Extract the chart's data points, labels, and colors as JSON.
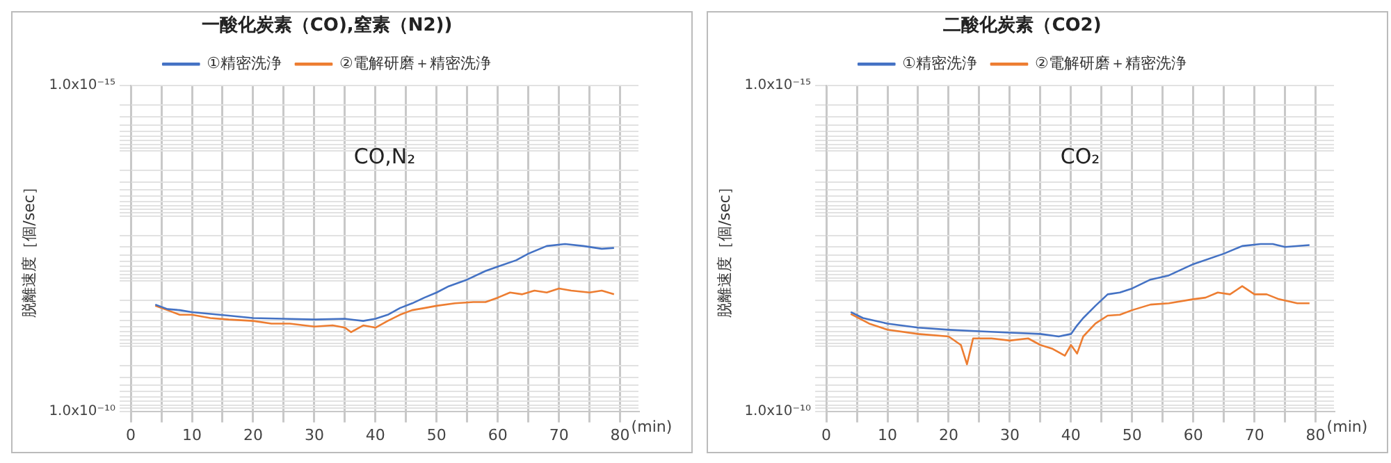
{
  "chart_data": [
    {
      "type": "line",
      "title": "一酸化炭素（CO),窒素（N2))",
      "xlabel": "(min)",
      "ylabel": "脱離速度［個/sec］",
      "annotations": [
        "CO,N₂"
      ],
      "log": true,
      "grid": true,
      "legend": "top",
      "xlim": [
        0,
        83
      ],
      "ylim": [
        1e-10,
        1e-15
      ],
      "xticks": [
        0,
        {
          "value": 5,
          "label": null
        },
        10,
        {
          "value": 15,
          "label": null
        },
        20,
        {
          "value": 25,
          "label": null
        },
        30,
        {
          "value": 35,
          "label": null
        },
        40,
        {
          "value": 45,
          "label": null
        },
        50,
        {
          "value": 55,
          "label": null
        },
        60,
        {
          "value": 65,
          "label": null
        },
        70,
        {
          "value": 75,
          "label": null
        },
        80
      ],
      "yticks": [
        {
          "value": 1e-15,
          "label": "1.0x10⁻¹⁵"
        },
        {
          "value": 2e-15,
          "label": null
        },
        {
          "value": 3e-15,
          "label": null
        },
        {
          "value": 4e-15,
          "label": null
        },
        {
          "value": 5e-15,
          "label": null
        },
        {
          "value": 6e-15,
          "label": null
        },
        {
          "value": 7e-15,
          "label": null
        },
        {
          "value": 8e-15,
          "label": null
        },
        {
          "value": 9e-15,
          "label": null
        },
        {
          "value": 1e-14,
          "label": null
        },
        {
          "value": 2e-14,
          "label": null
        },
        {
          "value": 3e-14,
          "label": null
        },
        {
          "value": 4e-14,
          "label": null
        },
        {
          "value": 5e-14,
          "label": null
        },
        {
          "value": 6e-14,
          "label": null
        },
        {
          "value": 7e-14,
          "label": null
        },
        {
          "value": 8e-14,
          "label": null
        },
        {
          "value": 9e-14,
          "label": null
        },
        {
          "value": 1e-13,
          "label": null
        },
        {
          "value": 2e-13,
          "label": null
        },
        {
          "value": 3e-13,
          "label": null
        },
        {
          "value": 4e-13,
          "label": null
        },
        {
          "value": 5e-13,
          "label": null
        },
        {
          "value": 6e-13,
          "label": null
        },
        {
          "value": 7e-13,
          "label": null
        },
        {
          "value": 8e-13,
          "label": null
        },
        {
          "value": 9e-13,
          "label": null
        },
        {
          "value": 1e-12,
          "label": null
        },
        {
          "value": 2e-12,
          "label": null
        },
        {
          "value": 3e-12,
          "label": null
        },
        {
          "value": 4e-12,
          "label": null
        },
        {
          "value": 5e-12,
          "label": null
        },
        {
          "value": 6e-12,
          "label": null
        },
        {
          "value": 7e-12,
          "label": null
        },
        {
          "value": 8e-12,
          "label": null
        },
        {
          "value": 9e-12,
          "label": null
        },
        {
          "value": 1e-11,
          "label": null
        },
        {
          "value": 2e-11,
          "label": null
        },
        {
          "value": 3e-11,
          "label": null
        },
        {
          "value": 4e-11,
          "label": null
        },
        {
          "value": 5e-11,
          "label": null
        },
        {
          "value": 6e-11,
          "label": null
        },
        {
          "value": 7e-11,
          "label": null
        },
        {
          "value": 8e-11,
          "label": null
        },
        {
          "value": 9e-11,
          "label": null
        },
        {
          "value": 1e-10,
          "label": "1.0x10⁻¹⁰"
        }
      ],
      "series": [
        {
          "name": "①精密洗浄",
          "color": "#4472c4",
          "x": [
            4,
            6,
            8,
            10,
            13,
            16,
            20,
            25,
            30,
            35,
            38,
            40,
            42,
            44,
            46,
            48,
            50,
            52,
            55,
            58,
            60,
            63,
            65,
            68,
            71,
            74,
            77,
            79
          ],
          "values": [
            2.3e-12,
            2.7e-12,
            2.8e-12,
            3e-12,
            3.2e-12,
            3.4e-12,
            3.7e-12,
            3.8e-12,
            3.9e-12,
            3.8e-12,
            4.1e-12,
            3.8e-12,
            3.3e-12,
            2.6e-12,
            2.2e-12,
            1.8e-12,
            1.5e-12,
            1.2e-12,
            9.5e-13,
            7e-13,
            6e-13,
            4.8e-13,
            3.8e-13,
            2.9e-13,
            2.7e-13,
            2.9e-13,
            3.2e-13,
            3.1e-13
          ]
        },
        {
          "name": "②電解研磨＋精密洗浄",
          "color": "#ed7d31",
          "x": [
            4,
            6,
            8,
            10,
            13,
            16,
            20,
            23,
            26,
            30,
            33,
            35,
            36,
            38,
            40,
            42,
            44,
            46,
            48,
            50,
            53,
            56,
            58,
            60,
            62,
            64,
            66,
            68,
            70,
            72,
            75,
            77,
            79
          ],
          "values": [
            2.4e-12,
            2.8e-12,
            3.3e-12,
            3.3e-12,
            3.7e-12,
            3.9e-12,
            4.1e-12,
            4.5e-12,
            4.5e-12,
            5e-12,
            4.8e-12,
            5.2e-12,
            6.1e-12,
            4.8e-12,
            5.2e-12,
            4.1e-12,
            3.3e-12,
            2.8e-12,
            2.6e-12,
            2.4e-12,
            2.2e-12,
            2.1e-12,
            2.1e-12,
            1.8e-12,
            1.5e-12,
            1.6e-12,
            1.4e-12,
            1.5e-12,
            1.3e-12,
            1.4e-12,
            1.5e-12,
            1.4e-12,
            1.6e-12
          ]
        }
      ]
    },
    {
      "type": "line",
      "title": "二酸化炭素（CO2)",
      "xlabel": "(min)",
      "ylabel": "脱離速度［個/sec］",
      "annotations": [
        "CO₂"
      ],
      "log": true,
      "grid": true,
      "legend": "top",
      "xlim": [
        0,
        83
      ],
      "ylim": [
        1e-10,
        1e-15
      ],
      "xticks": [
        0,
        {
          "value": 5,
          "label": null
        },
        10,
        {
          "value": 15,
          "label": null
        },
        20,
        {
          "value": 25,
          "label": null
        },
        30,
        {
          "value": 35,
          "label": null
        },
        40,
        {
          "value": 45,
          "label": null
        },
        50,
        {
          "value": 55,
          "label": null
        },
        60,
        {
          "value": 65,
          "label": null
        },
        70,
        {
          "value": 75,
          "label": null
        },
        80
      ],
      "yticks": [
        {
          "value": 1e-15,
          "label": "1.0x10⁻¹⁵"
        },
        {
          "value": 2e-15,
          "label": null
        },
        {
          "value": 3e-15,
          "label": null
        },
        {
          "value": 4e-15,
          "label": null
        },
        {
          "value": 5e-15,
          "label": null
        },
        {
          "value": 6e-15,
          "label": null
        },
        {
          "value": 7e-15,
          "label": null
        },
        {
          "value": 8e-15,
          "label": null
        },
        {
          "value": 9e-15,
          "label": null
        },
        {
          "value": 1e-14,
          "label": null
        },
        {
          "value": 2e-14,
          "label": null
        },
        {
          "value": 3e-14,
          "label": null
        },
        {
          "value": 4e-14,
          "label": null
        },
        {
          "value": 5e-14,
          "label": null
        },
        {
          "value": 6e-14,
          "label": null
        },
        {
          "value": 7e-14,
          "label": null
        },
        {
          "value": 8e-14,
          "label": null
        },
        {
          "value": 9e-14,
          "label": null
        },
        {
          "value": 1e-13,
          "label": null
        },
        {
          "value": 2e-13,
          "label": null
        },
        {
          "value": 3e-13,
          "label": null
        },
        {
          "value": 4e-13,
          "label": null
        },
        {
          "value": 5e-13,
          "label": null
        },
        {
          "value": 6e-13,
          "label": null
        },
        {
          "value": 7e-13,
          "label": null
        },
        {
          "value": 8e-13,
          "label": null
        },
        {
          "value": 9e-13,
          "label": null
        },
        {
          "value": 1e-12,
          "label": null
        },
        {
          "value": 2e-12,
          "label": null
        },
        {
          "value": 3e-12,
          "label": null
        },
        {
          "value": 4e-12,
          "label": null
        },
        {
          "value": 5e-12,
          "label": null
        },
        {
          "value": 6e-12,
          "label": null
        },
        {
          "value": 7e-12,
          "label": null
        },
        {
          "value": 8e-12,
          "label": null
        },
        {
          "value": 9e-12,
          "label": null
        },
        {
          "value": 1e-11,
          "label": null
        },
        {
          "value": 2e-11,
          "label": null
        },
        {
          "value": 3e-11,
          "label": null
        },
        {
          "value": 4e-11,
          "label": null
        },
        {
          "value": 5e-11,
          "label": null
        },
        {
          "value": 6e-11,
          "label": null
        },
        {
          "value": 7e-11,
          "label": null
        },
        {
          "value": 8e-11,
          "label": null
        },
        {
          "value": 9e-11,
          "label": null
        },
        {
          "value": 1e-10,
          "label": "1.0x10⁻¹⁰"
        }
      ],
      "series": [
        {
          "name": "①精密洗浄",
          "color": "#4472c4",
          "x": [
            4,
            6,
            10,
            15,
            20,
            25,
            30,
            35,
            38,
            40,
            41,
            42,
            44,
            46,
            48,
            50,
            53,
            56,
            60,
            65,
            68,
            71,
            73,
            75,
            79
          ],
          "values": [
            3e-12,
            3.7e-12,
            4.5e-12,
            5.2e-12,
            5.6e-12,
            5.9e-12,
            6.2e-12,
            6.5e-12,
            7.1e-12,
            6.5e-12,
            4.8e-12,
            3.7e-12,
            2.4e-12,
            1.6e-12,
            1.5e-12,
            1.3e-12,
            9.5e-13,
            8.2e-13,
            5.5e-13,
            3.8e-13,
            2.9e-13,
            2.7e-13,
            2.7e-13,
            3e-13,
            2.8e-13
          ]
        },
        {
          "name": "②電解研磨＋精密洗浄",
          "color": "#ed7d31",
          "x": [
            4,
            7,
            10,
            15,
            20,
            22,
            23,
            24,
            27,
            30,
            33,
            35,
            37,
            39,
            40,
            41,
            42,
            44,
            46,
            48,
            50,
            53,
            56,
            60,
            62,
            64,
            66,
            68,
            70,
            72,
            74,
            77,
            79
          ],
          "values": [
            3.2e-12,
            4.5e-12,
            5.6e-12,
            6.5e-12,
            7.1e-12,
            9.6e-12,
            1.9e-11,
            7.6e-12,
            7.6e-12,
            8.2e-12,
            7.6e-12,
            9.6e-12,
            1.1e-11,
            1.4e-11,
            9.6e-12,
            1.3e-11,
            7.1e-12,
            4.5e-12,
            3.4e-12,
            3.3e-12,
            2.8e-12,
            2.3e-12,
            2.2e-12,
            1.9e-12,
            1.8e-12,
            1.5e-12,
            1.6e-12,
            1.2e-12,
            1.6e-12,
            1.6e-12,
            1.9e-12,
            2.2e-12,
            2.2e-12
          ]
        }
      ]
    }
  ]
}
